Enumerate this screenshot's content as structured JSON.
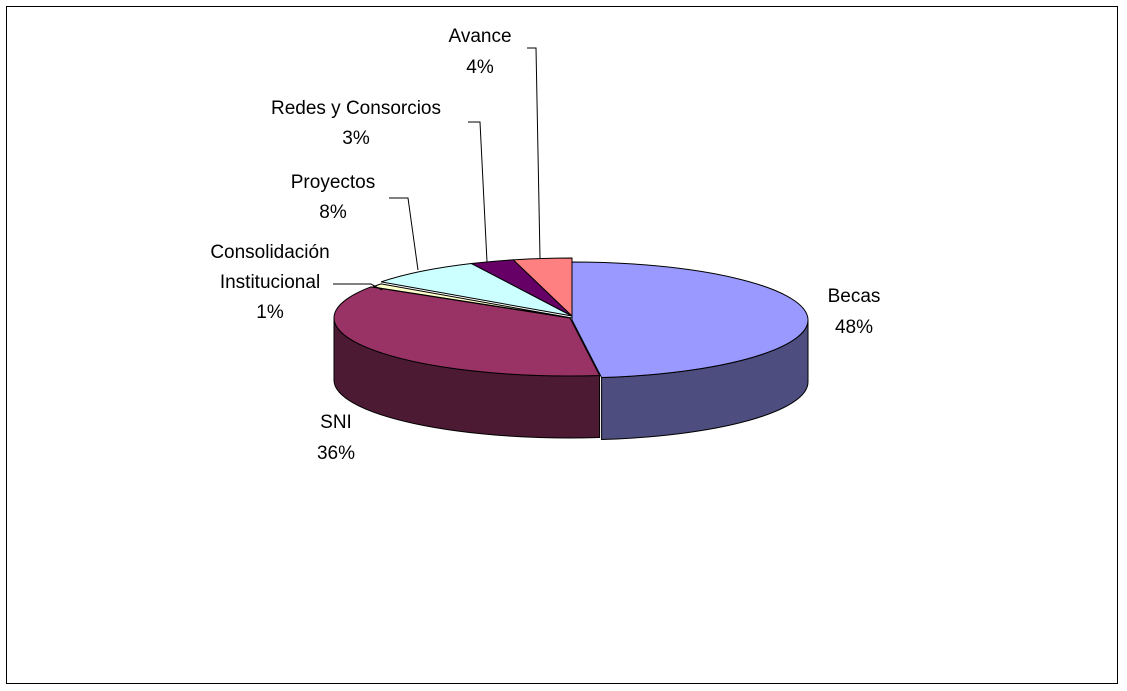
{
  "chart_data": {
    "type": "pie",
    "style": "3d-exploded-pie",
    "title": "",
    "legend": "none",
    "slices": [
      {
        "label": "Becas",
        "value": 48,
        "value_label": "48%",
        "color": "#9999FF",
        "side_color": "#4D4D80"
      },
      {
        "label": "SNI",
        "value": 36,
        "value_label": "36%",
        "color": "#993366",
        "side_color": "#4D1A33"
      },
      {
        "label": "Consolidación Institucional",
        "label_lines": [
          "Consolidación",
          "Institucional"
        ],
        "value": 1,
        "value_label": "1%",
        "color": "#FFFFCC",
        "side_color": "#808066"
      },
      {
        "label": "Proyectos",
        "value": 8,
        "value_label": "8%",
        "color": "#CCFFFF",
        "side_color": "#668080"
      },
      {
        "label": "Redes y Consorcios",
        "value": 3,
        "value_label": "3%",
        "color": "#660066",
        "side_color": "#330033"
      },
      {
        "label": "Avance",
        "value": 4,
        "value_label": "4%",
        "color": "#FF8080",
        "side_color": "#804040"
      }
    ]
  }
}
